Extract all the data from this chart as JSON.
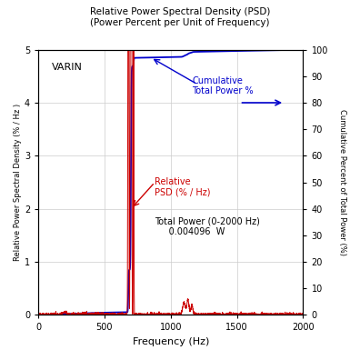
{
  "title_line1": "Relative Power Spectral Density (PSD)",
  "title_line2": "(Power Percent per Unit of Frequency)",
  "xlabel": "Frequency (Hz)",
  "ylabel_left": "Relative Power Spectral Density (% / Hz )",
  "ylabel_right": "Cumulative Percent of Total Power (%)",
  "label_varin": "VARIN",
  "annotation_cumulative": "Cumulative\nTotal Power %",
  "annotation_psd": "Relative\nPSD (% / Hz)",
  "annotation_total_power": "Total Power (0-2000 Hz)\n     0.004096  W",
  "xlim": [
    0,
    2000
  ],
  "ylim_left": [
    0,
    5
  ],
  "ylim_right": [
    0,
    100
  ],
  "xticks": [
    0,
    500,
    1000,
    1500,
    2000
  ],
  "yticks_left": [
    0,
    1,
    2,
    3,
    4,
    5
  ],
  "yticks_right": [
    0,
    10,
    20,
    30,
    40,
    50,
    60,
    70,
    80,
    90,
    100
  ],
  "psd_color": "#cc0000",
  "cumulative_color": "#0000cc",
  "background_color": "#ffffff",
  "grid_color": "#cccccc",
  "figsize": [
    3.96,
    3.96
  ],
  "dpi": 100
}
